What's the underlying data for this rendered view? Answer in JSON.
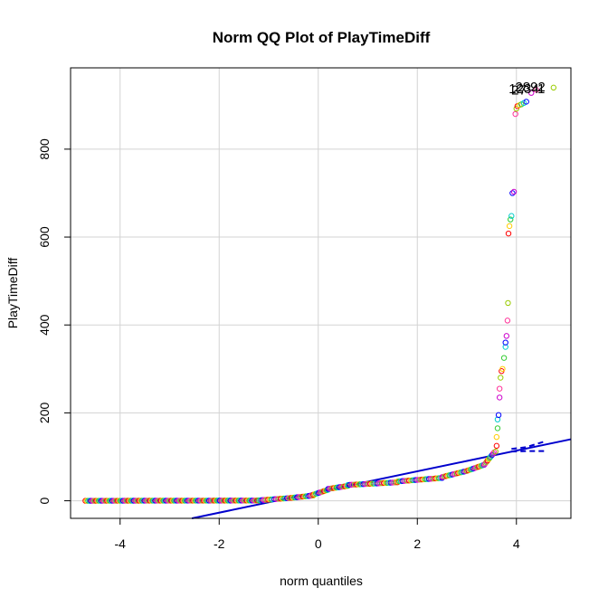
{
  "chart_data": {
    "type": "scatter",
    "title": "Norm QQ Plot of PlayTimeDiff",
    "xlabel": "norm quantiles",
    "ylabel": "PlayTimeDiff",
    "xlim": [
      -5.0,
      5.1
    ],
    "ylim": [
      -40,
      985
    ],
    "x_ticks": [
      -4,
      -2,
      0,
      2,
      4
    ],
    "y_ticks": [
      0,
      200,
      400,
      600,
      800
    ],
    "grid": true,
    "legend": "none",
    "reference_line": {
      "color": "#0000CD",
      "points": [
        [
          -2.55,
          -40
        ],
        [
          5.1,
          140
        ]
      ],
      "confidence_band": [
        [
          [
            3.9,
            118
          ],
          [
            4.2,
            122
          ],
          [
            4.6,
            136
          ]
        ],
        [
          [
            3.9,
            112
          ],
          [
            4.2,
            113
          ],
          [
            4.6,
            113
          ]
        ]
      ]
    },
    "palette": [
      "#FF0000",
      "#FFCC00",
      "#33CC33",
      "#00CCCC",
      "#0000FF",
      "#CC00CC",
      "#FF3399",
      "#99CC00"
    ],
    "segments": [
      {
        "x_from": -4.7,
        "x_to": -1.2,
        "y_from": 0,
        "y_to": 0.5,
        "count": 130
      },
      {
        "x_from": -1.2,
        "x_to": -0.6,
        "y_from": 1,
        "y_to": 6,
        "count": 20
      },
      {
        "x_from": -0.6,
        "x_to": -0.1,
        "y_from": 6,
        "y_to": 12,
        "count": 18
      },
      {
        "x_from": -0.1,
        "x_to": 0.2,
        "y_from": 14,
        "y_to": 25,
        "count": 12
      },
      {
        "x_from": 0.2,
        "x_to": 0.6,
        "y_from": 27,
        "y_to": 34,
        "count": 15
      },
      {
        "x_from": 0.6,
        "x_to": 1.6,
        "y_from": 36,
        "y_to": 42,
        "count": 30
      },
      {
        "x_from": 1.6,
        "x_to": 2.5,
        "y_from": 44,
        "y_to": 52,
        "count": 28
      },
      {
        "x_from": 2.5,
        "x_to": 3.0,
        "y_from": 54,
        "y_to": 68,
        "count": 18
      },
      {
        "x_from": 3.0,
        "x_to": 3.35,
        "y_from": 68,
        "y_to": 82,
        "count": 14
      },
      {
        "x_from": 3.35,
        "x_to": 3.55,
        "y_from": 82,
        "y_to": 110,
        "count": 10
      }
    ],
    "tail_points": [
      [
        3.58,
        112
      ],
      [
        3.6,
        125
      ],
      [
        3.6,
        145
      ],
      [
        3.62,
        165
      ],
      [
        3.62,
        185
      ],
      [
        3.64,
        195
      ],
      [
        3.66,
        235
      ],
      [
        3.66,
        255
      ],
      [
        3.68,
        280
      ],
      [
        3.7,
        295
      ],
      [
        3.72,
        300
      ],
      [
        3.75,
        325
      ],
      [
        3.78,
        350
      ],
      [
        3.78,
        360
      ],
      [
        3.8,
        375
      ],
      [
        3.82,
        410
      ],
      [
        3.83,
        450
      ],
      [
        3.84,
        608
      ],
      [
        3.86,
        625
      ],
      [
        3.88,
        640
      ],
      [
        3.9,
        648
      ],
      [
        3.92,
        700
      ],
      [
        3.95,
        703
      ],
      [
        3.98,
        880
      ],
      [
        4.0,
        892
      ],
      [
        4.02,
        898
      ],
      [
        4.06,
        900
      ],
      [
        4.1,
        902
      ],
      [
        4.15,
        905
      ],
      [
        4.2,
        908
      ],
      [
        4.3,
        928
      ],
      [
        4.4,
        935
      ],
      [
        4.75,
        940
      ]
    ],
    "annotations": [
      {
        "text": "27",
        "x": 4.05,
        "y": 935
      },
      {
        "text": "1234",
        "x": 4.15,
        "y": 938
      },
      {
        "text": "2892",
        "x": 4.28,
        "y": 942
      },
      {
        "text": "1",
        "x": 4.5,
        "y": 938
      }
    ]
  }
}
